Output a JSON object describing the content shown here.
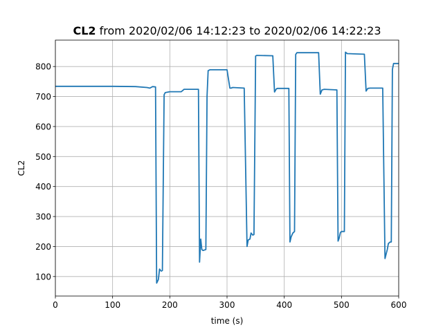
{
  "chart_data": {
    "type": "line",
    "title_bold": "CL2",
    "title_rest": " from 2020/02/06 14:12:23 to 2020/02/06 14:22:23",
    "xlabel": "time (s)",
    "ylabel": "CL2",
    "xlim": [
      0,
      600
    ],
    "ylim": [
      35,
      888
    ],
    "xticks": [
      0,
      100,
      200,
      300,
      400,
      500,
      600
    ],
    "yticks": [
      100,
      200,
      300,
      400,
      500,
      600,
      700,
      800
    ],
    "grid": true,
    "legend": "none",
    "series_color": "#1f77b4",
    "series": [
      {
        "x": [
          0,
          50,
          100,
          140,
          160,
          165,
          170,
          175,
          177,
          180,
          182,
          185,
          187,
          190,
          192,
          200,
          220,
          225,
          250,
          252,
          254,
          256,
          258,
          263,
          265,
          267,
          270,
          300,
          305,
          307,
          310,
          330,
          335,
          337,
          340,
          342,
          345,
          347,
          350,
          352,
          380,
          383,
          386,
          388,
          390,
          408,
          410,
          412,
          415,
          418,
          420,
          422,
          425,
          460,
          463,
          466,
          470,
          492,
          494,
          496,
          498,
          500,
          505,
          507,
          510,
          540,
          543,
          546,
          550,
          572,
          576,
          580,
          582,
          585,
          587,
          589,
          591,
          600
        ],
        "y": [
          734,
          734,
          734,
          733,
          730,
          728,
          733,
          732,
          78,
          90,
          125,
          118,
          120,
          706,
          713,
          716,
          716,
          724,
          724,
          148,
          225,
          190,
          187,
          190,
          700,
          786,
          789,
          789,
          728,
          728,
          730,
          728,
          200,
          222,
          225,
          245,
          238,
          240,
          835,
          837,
          836,
          715,
          725,
          727,
          727,
          727,
          215,
          232,
          245,
          250,
          840,
          846,
          846,
          846,
          708,
          722,
          724,
          722,
          218,
          228,
          246,
          250,
          250,
          848,
          843,
          841,
          718,
          727,
          728,
          728,
          160,
          190,
          210,
          215,
          215,
          790,
          810,
          810
        ]
      }
    ]
  }
}
